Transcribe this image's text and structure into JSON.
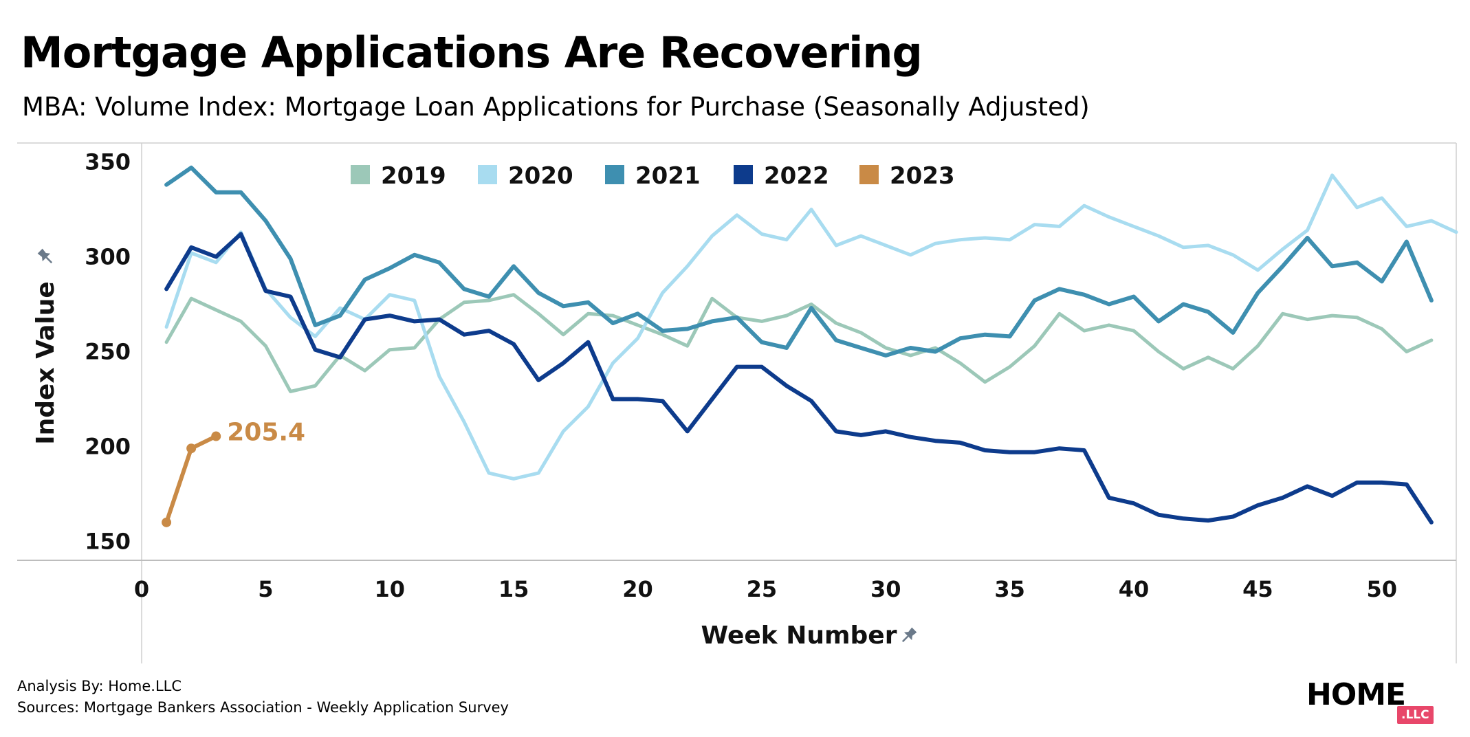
{
  "header": {
    "title": "Mortgage Applications Are Recovering",
    "subtitle": "MBA: Volume Index: Mortgage Loan Applications for Purchase (Seasonally Adjusted)"
  },
  "chart_data": {
    "type": "line",
    "xlabel": "Week Number",
    "ylabel": "Index Value",
    "axis_title_icon": "pin-icon",
    "xlim": [
      0,
      53
    ],
    "ylim": [
      140,
      360
    ],
    "xticks": [
      0,
      5,
      10,
      15,
      20,
      25,
      30,
      35,
      40,
      45,
      50
    ],
    "yticks": [
      150,
      200,
      250,
      300,
      350
    ],
    "legend_position": "top",
    "grid": false,
    "annotation": {
      "series": "2023",
      "label": "205.4"
    },
    "series": [
      {
        "name": "2019",
        "color": "#9cc8b8",
        "stroke_width": 5,
        "x": [
          1,
          2,
          3,
          4,
          5,
          6,
          7,
          8,
          9,
          10,
          11,
          12,
          13,
          14,
          15,
          16,
          17,
          18,
          19,
          20,
          21,
          22,
          23,
          24,
          25,
          26,
          27,
          28,
          29,
          30,
          31,
          32,
          33,
          34,
          35,
          36,
          37,
          38,
          39,
          40,
          41,
          42,
          43,
          44,
          45,
          46,
          47,
          48,
          49,
          50,
          51,
          52
        ],
        "values": [
          255,
          278,
          272,
          266,
          253,
          229,
          232,
          248,
          240,
          251,
          252,
          267,
          276,
          277,
          280,
          270,
          259,
          270,
          269,
          264,
          259,
          253,
          278,
          268,
          266,
          269,
          275,
          265,
          260,
          252,
          248,
          252,
          244,
          234,
          242,
          253,
          270,
          261,
          264,
          261,
          250,
          241,
          247,
          241,
          253,
          270,
          267,
          269,
          268,
          262,
          250,
          256
        ]
      },
      {
        "name": "2020",
        "color": "#a8dcf0",
        "stroke_width": 5,
        "x": [
          1,
          2,
          3,
          4,
          5,
          6,
          7,
          8,
          9,
          10,
          11,
          12,
          13,
          14,
          15,
          16,
          17,
          18,
          19,
          20,
          21,
          22,
          23,
          24,
          25,
          26,
          27,
          28,
          29,
          30,
          31,
          32,
          33,
          34,
          35,
          36,
          37,
          38,
          39,
          40,
          41,
          42,
          43,
          44,
          45,
          46,
          47,
          48,
          49,
          50,
          51,
          52,
          53
        ],
        "values": [
          263,
          302,
          297,
          313,
          283,
          268,
          258,
          273,
          267,
          280,
          277,
          237,
          213,
          186,
          183,
          186,
          208,
          221,
          244,
          257,
          281,
          295,
          311,
          322,
          312,
          309,
          325,
          306,
          311,
          306,
          301,
          307,
          309,
          310,
          309,
          317,
          316,
          327,
          321,
          316,
          311,
          305,
          306,
          301,
          293,
          304,
          314,
          343,
          326,
          331,
          316,
          319,
          313
        ]
      },
      {
        "name": "2021",
        "color": "#3e8fb0",
        "stroke_width": 6,
        "x": [
          1,
          2,
          3,
          4,
          5,
          6,
          7,
          8,
          9,
          10,
          11,
          12,
          13,
          14,
          15,
          16,
          17,
          18,
          19,
          20,
          21,
          22,
          23,
          24,
          25,
          26,
          27,
          28,
          29,
          30,
          31,
          32,
          33,
          34,
          35,
          36,
          37,
          38,
          39,
          40,
          41,
          42,
          43,
          44,
          45,
          46,
          47,
          48,
          49,
          50,
          51,
          52
        ],
        "values": [
          338,
          347,
          334,
          334,
          319,
          299,
          264,
          269,
          288,
          294,
          301,
          297,
          283,
          279,
          295,
          281,
          274,
          276,
          265,
          270,
          261,
          262,
          266,
          268,
          255,
          252,
          273,
          256,
          252,
          248,
          252,
          250,
          257,
          259,
          258,
          277,
          283,
          280,
          275,
          279,
          266,
          275,
          271,
          260,
          281,
          295,
          310,
          295,
          297,
          287,
          308,
          277
        ]
      },
      {
        "name": "2022",
        "color": "#0d3b8c",
        "stroke_width": 6,
        "x": [
          1,
          2,
          3,
          4,
          5,
          6,
          7,
          8,
          9,
          10,
          11,
          12,
          13,
          14,
          15,
          16,
          17,
          18,
          19,
          20,
          21,
          22,
          23,
          24,
          25,
          26,
          27,
          28,
          29,
          30,
          31,
          32,
          33,
          34,
          35,
          36,
          37,
          38,
          39,
          40,
          41,
          42,
          43,
          44,
          45,
          46,
          47,
          48,
          49,
          50,
          51,
          52
        ],
        "values": [
          283,
          305,
          300,
          312,
          282,
          279,
          251,
          247,
          267,
          269,
          266,
          267,
          259,
          261,
          254,
          235,
          244,
          255,
          225,
          225,
          224,
          208,
          225,
          242,
          242,
          232,
          224,
          208,
          206,
          208,
          205,
          203,
          202,
          198,
          197,
          197,
          199,
          198,
          173,
          170,
          164,
          162,
          161,
          163,
          169,
          173,
          179,
          174,
          181,
          181,
          180,
          160
        ]
      },
      {
        "name": "2023",
        "color": "#c98a46",
        "stroke_width": 6,
        "markers": true,
        "x": [
          1,
          2,
          3
        ],
        "values": [
          160,
          199,
          205.4
        ]
      }
    ]
  },
  "footer": {
    "analysis": "Analysis By: Home.LLC",
    "sources": "Sources: Mortgage Bankers Association - Weekly Application Survey"
  },
  "logo": {
    "wordmark": "HOME",
    "badge": ".LLC"
  }
}
